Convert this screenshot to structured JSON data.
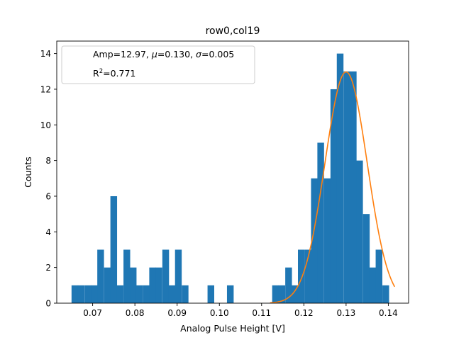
{
  "chart_data": {
    "type": "bar",
    "title": "row0,col19",
    "xlabel": "Analog Pulse Height [V]",
    "ylabel": "Counts",
    "xlim": [
      0.0615,
      0.1448
    ],
    "ylim": [
      0,
      14.7
    ],
    "xticks": [
      0.07,
      0.08,
      0.09,
      0.1,
      0.11,
      0.12,
      0.13,
      0.14
    ],
    "xtick_labels": [
      "0.07",
      "0.08",
      "0.09",
      "0.10",
      "0.11",
      "0.12",
      "0.13",
      "0.14"
    ],
    "yticks": [
      0,
      2,
      4,
      6,
      8,
      10,
      12,
      14
    ],
    "ytick_labels": [
      "0",
      "2",
      "4",
      "6",
      "8",
      "10",
      "12",
      "14"
    ],
    "grid": false,
    "legend_position": "top-left",
    "bar_color": "#1f77b4",
    "fit_color": "#ff7f0e",
    "bin_start": 0.065,
    "bin_width": 0.0015333,
    "counts": [
      1,
      1,
      1,
      1,
      1,
      1,
      1,
      1,
      1,
      1,
      1,
      1,
      1,
      1,
      1,
      1,
      1,
      1,
      3,
      3,
      2,
      2,
      6,
      6,
      1,
      1,
      3,
      3,
      2,
      2,
      1,
      1,
      1,
      1,
      2,
      2,
      2,
      2,
      3,
      3,
      1,
      1,
      3,
      3,
      1,
      1,
      0,
      0,
      0,
      0,
      0,
      0,
      0,
      0,
      0,
      0,
      0,
      0,
      1,
      1,
      0,
      0,
      0,
      0,
      0,
      0,
      0,
      0,
      0,
      0,
      0,
      0,
      0,
      0,
      0,
      0,
      0,
      0,
      0,
      0,
      0,
      0,
      0,
      0,
      0,
      0,
      0,
      0,
      0,
      0,
      0,
      0,
      0,
      0,
      0,
      0,
      0,
      0,
      0,
      0,
      0,
      0,
      0,
      0,
      0,
      0,
      1,
      0,
      0,
      0,
      0,
      0,
      0,
      0,
      0,
      0,
      0,
      0,
      0,
      0,
      0,
      0,
      1,
      1,
      0,
      0,
      0,
      0,
      0,
      0,
      0,
      0,
      0,
      0,
      0,
      0,
      0,
      0,
      0,
      0,
      0,
      0,
      0,
      0,
      0,
      0,
      0,
      0,
      0,
      0,
      0,
      0,
      0,
      0,
      0,
      0,
      0,
      0,
      1,
      1,
      1,
      1,
      1,
      1,
      1,
      1,
      2,
      2,
      1,
      1,
      3,
      3,
      3,
      3,
      3,
      3,
      7,
      7,
      9,
      9,
      7,
      7,
      12,
      12,
      14,
      14,
      13,
      13,
      13,
      13,
      8,
      8,
      5,
      5,
      2,
      2,
      3,
      3,
      1,
      1
    ],
    "bins": [
      {
        "x": 0.065,
        "count": 1
      },
      {
        "x": 0.0665,
        "count": 1
      },
      {
        "x": 0.0681,
        "count": 1
      },
      {
        "x": 0.0696,
        "count": 1
      },
      {
        "x": 0.0711,
        "count": 3
      },
      {
        "x": 0.0727,
        "count": 2
      },
      {
        "x": 0.0742,
        "count": 6
      },
      {
        "x": 0.0757,
        "count": 1
      },
      {
        "x": 0.0773,
        "count": 3
      },
      {
        "x": 0.0788,
        "count": 2
      },
      {
        "x": 0.0803,
        "count": 1
      },
      {
        "x": 0.0819,
        "count": 1
      },
      {
        "x": 0.0834,
        "count": 2
      },
      {
        "x": 0.0849,
        "count": 2
      },
      {
        "x": 0.0865,
        "count": 3
      },
      {
        "x": 0.088,
        "count": 1
      },
      {
        "x": 0.0895,
        "count": 3
      },
      {
        "x": 0.0911,
        "count": 1
      },
      {
        "x": 0.0972,
        "count": 1
      },
      {
        "x": 0.1018,
        "count": 1
      },
      {
        "x": 0.1125,
        "count": 1
      },
      {
        "x": 0.114,
        "count": 1
      },
      {
        "x": 0.1156,
        "count": 2
      },
      {
        "x": 0.1171,
        "count": 1
      },
      {
        "x": 0.1186,
        "count": 3
      },
      {
        "x": 0.1202,
        "count": 3
      },
      {
        "x": 0.1217,
        "count": 7
      },
      {
        "x": 0.1232,
        "count": 9
      },
      {
        "x": 0.1248,
        "count": 7
      },
      {
        "x": 0.1263,
        "count": 12
      },
      {
        "x": 0.1278,
        "count": 14
      },
      {
        "x": 0.1294,
        "count": 13
      },
      {
        "x": 0.1309,
        "count": 13
      },
      {
        "x": 0.1324,
        "count": 8
      },
      {
        "x": 0.134,
        "count": 5
      },
      {
        "x": 0.1355,
        "count": 2
      },
      {
        "x": 0.137,
        "count": 3
      },
      {
        "x": 0.1386,
        "count": 1
      }
    ],
    "fit": {
      "amp": 12.97,
      "mu": 0.13,
      "sigma": 0.005,
      "x_range": [
        0.112,
        0.1415
      ]
    },
    "legend": [
      {
        "label": "Amp=12.97, ",
        "mu_label": "=0.130, ",
        "sigma_label": "=0.005"
      },
      {
        "label": "R",
        "sup": "2",
        "value": "=0.771"
      }
    ]
  }
}
